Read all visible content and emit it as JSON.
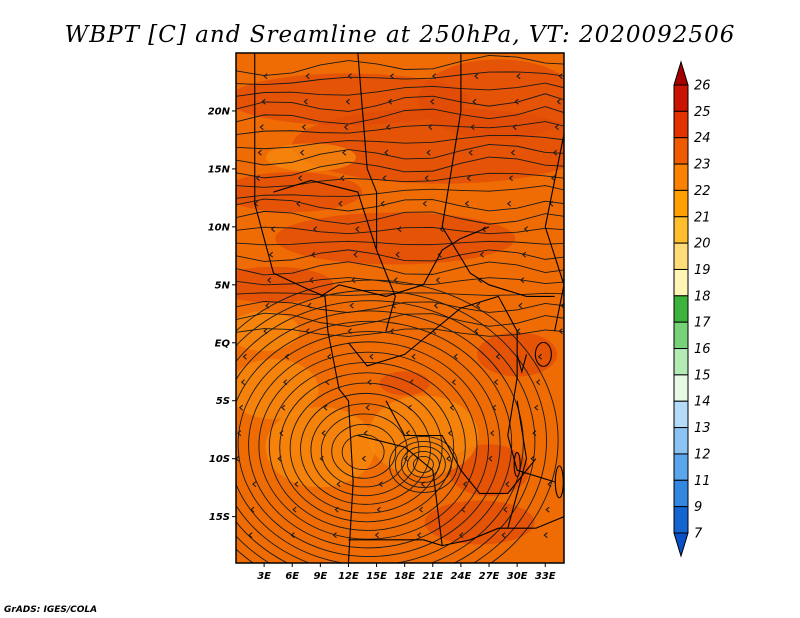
{
  "chart_data": {
    "type": "heatmap",
    "title": "WBPT [C] and Sreamline at 250hPa, VT: 2020092506",
    "variable": "WBPT [C]",
    "overlay": "streamlines",
    "level": "250hPa",
    "valid_time": "2020092506",
    "x_ticks": [
      "3E",
      "6E",
      "9E",
      "12E",
      "15E",
      "18E",
      "21E",
      "24E",
      "27E",
      "30E",
      "33E"
    ],
    "y_ticks": [
      "20N",
      "15N",
      "10N",
      "5N",
      "EQ",
      "5S",
      "10S",
      "15S"
    ],
    "xlim": [
      0,
      35
    ],
    "ylim": [
      -19,
      25
    ],
    "colorbar": {
      "labels": [
        "26",
        "25",
        "24",
        "23",
        "22",
        "21",
        "20",
        "19",
        "18",
        "17",
        "16",
        "15",
        "14",
        "13",
        "12",
        "11",
        "9",
        "7"
      ],
      "colors": [
        "#a50000",
        "#c81400",
        "#e13200",
        "#f05a00",
        "#fa8200",
        "#ffa000",
        "#ffbe2d",
        "#ffdc78",
        "#fff5b4",
        "#3cb43c",
        "#78d278",
        "#b4eab4",
        "#e6fae6",
        "#b4dcfa",
        "#8cc3f5",
        "#5aa5eb",
        "#3287e1",
        "#1464d2",
        "#0a50c8"
      ]
    },
    "field_colors": {
      "dominant": "#ef6c05",
      "higher": "#e04b07",
      "lower": "#f78a0e"
    },
    "streamline_color": "#1a1a1a",
    "boundary_color": "#000000"
  },
  "credit": "GrADS: IGES/COLA"
}
